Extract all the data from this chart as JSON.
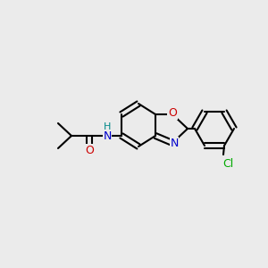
{
  "background_color": "#ebebeb",
  "bond_color": "#000000",
  "bond_lw": 1.5,
  "N_color": "#0000cc",
  "H_color": "#008888",
  "O_color": "#cc0000",
  "Cl_color": "#00aa00",
  "font_size": 9,
  "atoms": {
    "N_label": "N",
    "H_label": "H",
    "O_label": "O",
    "Cl_label": "Cl"
  }
}
